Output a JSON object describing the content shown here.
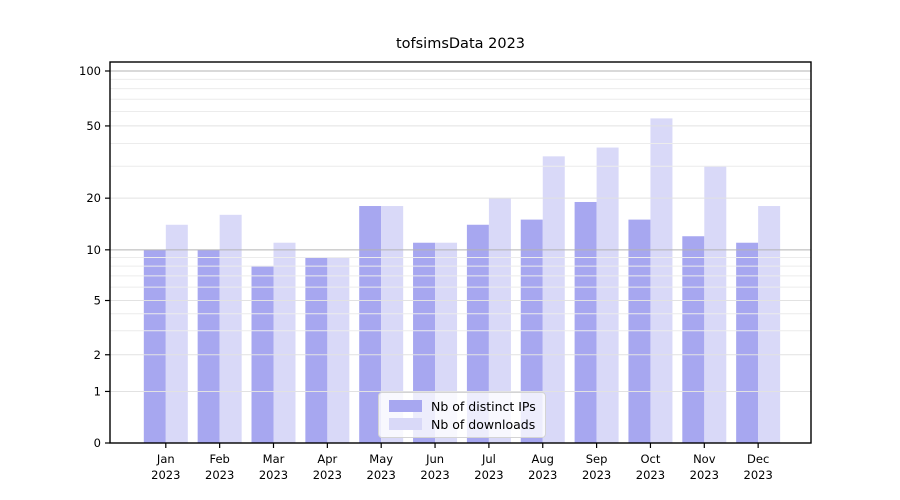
{
  "window": {
    "background": "#ffffff"
  },
  "chart_data": {
    "type": "bar",
    "title": "tofsimsData 2023",
    "x_months": [
      "Jan",
      "Feb",
      "Mar",
      "Apr",
      "May",
      "Jun",
      "Jul",
      "Aug",
      "Sep",
      "Oct",
      "Nov",
      "Dec"
    ],
    "x_year": "2023",
    "series": [
      {
        "name": "Nb of distinct IPs",
        "color": "#a7a7f0",
        "values": [
          10,
          10,
          8,
          9,
          18,
          11,
          14,
          15,
          19,
          15,
          12,
          11
        ]
      },
      {
        "name": "Nb of downloads",
        "color": "#d9d9f8",
        "values": [
          14,
          16,
          11,
          9,
          18,
          11,
          20,
          34,
          38,
          55,
          30,
          18
        ]
      }
    ],
    "yscale": "symlog",
    "yticks": [
      0,
      1,
      2,
      5,
      10,
      20,
      50,
      100
    ],
    "minor_gridlines": [
      3,
      4,
      6,
      7,
      8,
      9,
      30,
      40,
      60,
      70,
      80,
      90
    ],
    "grid": true,
    "legend_position": "lower center",
    "colors": {
      "grid_major": "#b3b3b3",
      "grid_normal": "#e2e2e2",
      "grid_minor": "#ececec",
      "axis": "#000000",
      "tick_label": "#000000"
    }
  }
}
